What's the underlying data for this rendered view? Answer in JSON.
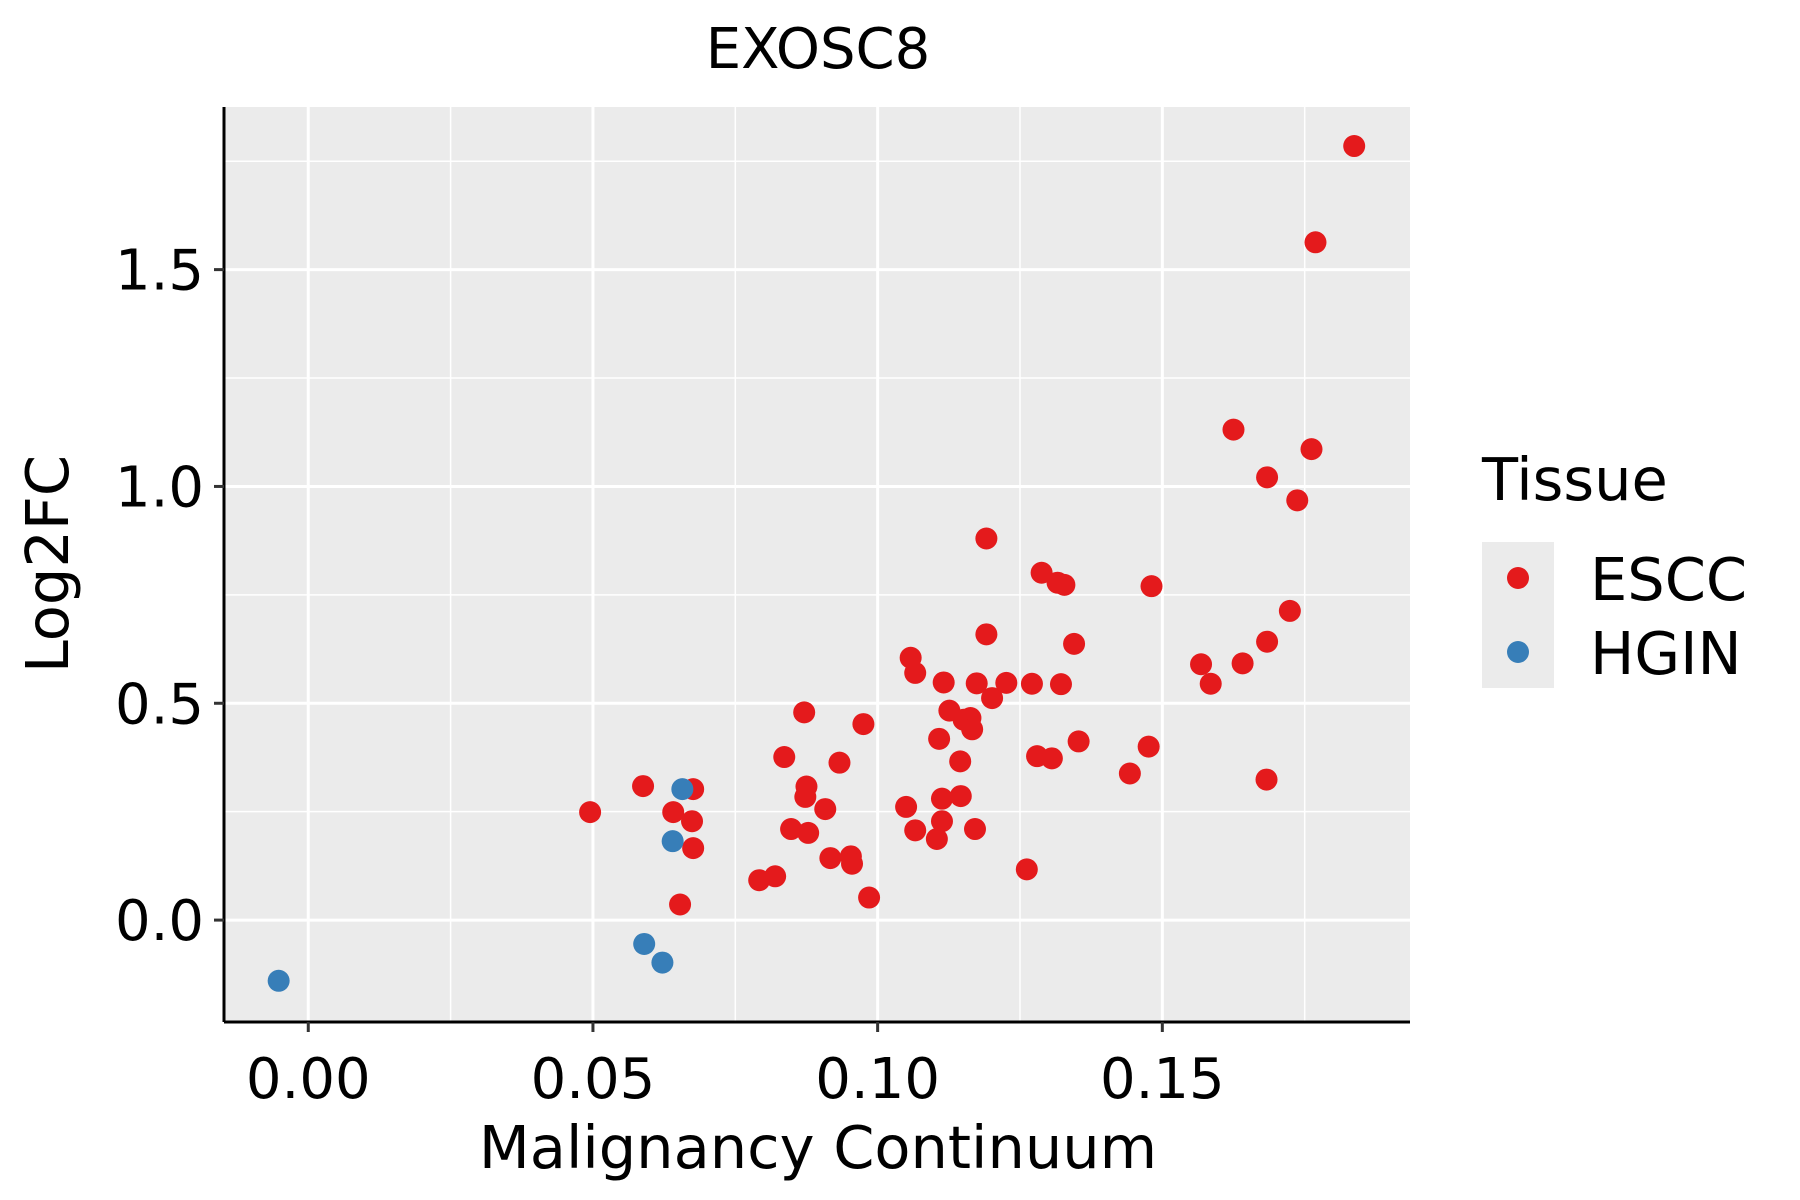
{
  "chart_data": {
    "type": "scatter",
    "title": "EXOSC8",
    "xlabel": "Malignancy Continuum",
    "ylabel": "Log2FC",
    "xlim": [
      -0.0148,
      0.1935
    ],
    "ylim": [
      -0.235,
      1.875
    ],
    "xticks": [
      0.0,
      0.05,
      0.1,
      0.15
    ],
    "xtick_labels": [
      "0.00",
      "0.05",
      "0.10",
      "0.15"
    ],
    "yticks": [
      0.0,
      0.5,
      1.0,
      1.5
    ],
    "ytick_labels": [
      "0.0",
      "0.5",
      "1.0",
      "1.5"
    ],
    "grid": true,
    "legend": {
      "title": "Tissue",
      "position": "right"
    },
    "series": [
      {
        "name": "ESCC",
        "color": "#E41A1C",
        "points": [
          [
            0.0495,
            0.249
          ],
          [
            0.0588,
            0.309
          ],
          [
            0.0641,
            0.249
          ],
          [
            0.0676,
            0.302
          ],
          [
            0.0674,
            0.228
          ],
          [
            0.0676,
            0.166
          ],
          [
            0.0653,
            0.036
          ],
          [
            0.0792,
            0.092
          ],
          [
            0.082,
            0.101
          ],
          [
            0.0836,
            0.376
          ],
          [
            0.0848,
            0.21
          ],
          [
            0.0871,
            0.479
          ],
          [
            0.0875,
            0.308
          ],
          [
            0.0873,
            0.284
          ],
          [
            0.0878,
            0.201
          ],
          [
            0.0908,
            0.256
          ],
          [
            0.0917,
            0.143
          ],
          [
            0.0933,
            0.363
          ],
          [
            0.0953,
            0.147
          ],
          [
            0.0955,
            0.13
          ],
          [
            0.0975,
            0.452
          ],
          [
            0.0985,
            0.052
          ],
          [
            0.105,
            0.261
          ],
          [
            0.1058,
            0.605
          ],
          [
            0.1066,
            0.57
          ],
          [
            0.1066,
            0.207
          ],
          [
            0.1104,
            0.187
          ],
          [
            0.1108,
            0.418
          ],
          [
            0.1113,
            0.28
          ],
          [
            0.1113,
            0.228
          ],
          [
            0.1116,
            0.548
          ],
          [
            0.1126,
            0.483
          ],
          [
            0.1146,
            0.286
          ],
          [
            0.1145,
            0.366
          ],
          [
            0.1151,
            0.462
          ],
          [
            0.1163,
            0.466
          ],
          [
            0.1166,
            0.44
          ],
          [
            0.1171,
            0.21
          ],
          [
            0.1174,
            0.546
          ],
          [
            0.1191,
            0.659
          ],
          [
            0.1191,
            0.88
          ],
          [
            0.1201,
            0.512
          ],
          [
            0.1226,
            0.547
          ],
          [
            0.1262,
            0.117
          ],
          [
            0.1271,
            0.545
          ],
          [
            0.128,
            0.378
          ],
          [
            0.1288,
            0.801
          ],
          [
            0.1306,
            0.373
          ],
          [
            0.1316,
            0.778
          ],
          [
            0.1322,
            0.544
          ],
          [
            0.1328,
            0.773
          ],
          [
            0.1345,
            0.637
          ],
          [
            0.1353,
            0.412
          ],
          [
            0.1443,
            0.338
          ],
          [
            0.1476,
            0.4
          ],
          [
            0.1481,
            0.77
          ],
          [
            0.1568,
            0.59
          ],
          [
            0.1585,
            0.545
          ],
          [
            0.1641,
            0.592
          ],
          [
            0.1625,
            1.131
          ],
          [
            0.1683,
            0.324
          ],
          [
            0.1684,
            0.642
          ],
          [
            0.1684,
            1.021
          ],
          [
            0.1737,
            0.968
          ],
          [
            0.1724,
            0.713
          ],
          [
            0.1762,
            1.086
          ],
          [
            0.1769,
            1.563
          ],
          [
            0.1837,
            1.785
          ]
        ]
      },
      {
        "name": "HGIN",
        "color": "#377EB8",
        "points": [
          [
            -0.0052,
            -0.14
          ],
          [
            0.059,
            -0.055
          ],
          [
            0.0622,
            -0.098
          ],
          [
            0.064,
            0.182
          ],
          [
            0.0657,
            0.302
          ]
        ]
      }
    ]
  }
}
